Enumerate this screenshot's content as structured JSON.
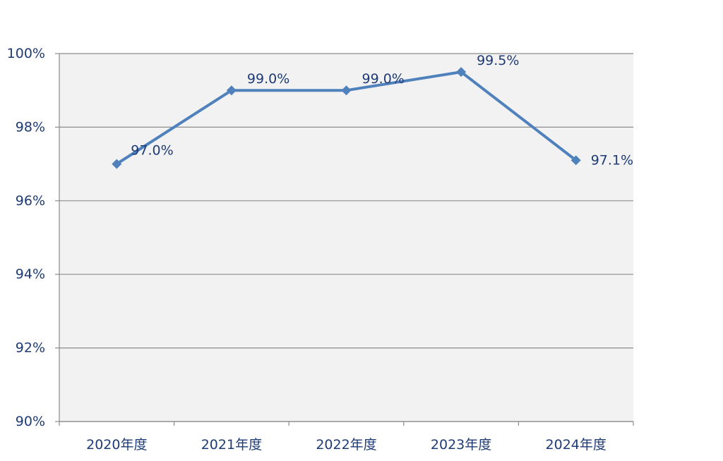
{
  "chart_data": {
    "type": "line",
    "categories": [
      "2020年度",
      "2021年度",
      "2022年度",
      "2023年度",
      "2024年度"
    ],
    "series": [
      {
        "values": [
          97.0,
          99.0,
          99.0,
          99.5,
          97.1
        ],
        "data_labels": [
          "97.0%",
          "99.0%",
          "99.0%",
          "99.5%",
          "97.1%"
        ]
      }
    ],
    "ylim": [
      90,
      100
    ],
    "yticks": [
      90,
      92,
      94,
      96,
      98,
      100
    ],
    "ytick_labels": [
      "90%",
      "92%",
      "94%",
      "96%",
      "98%",
      "100%"
    ],
    "grid": true,
    "legend": "none",
    "marker": "diamond",
    "colors": {
      "series": "#4f81bd",
      "plot_background": "#f2f2f2",
      "gridline": "#8c8c8c",
      "text": "#1f3b75"
    }
  }
}
